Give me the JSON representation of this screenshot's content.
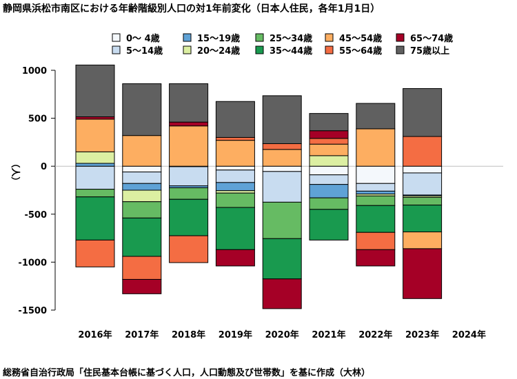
{
  "title": "静岡県浜松市南区における年齢階級別人口の対1年前変化（日本人住民，各年1月1日）",
  "source": "総務省自治行政局「住民基本台帳に基づく人口，人口動態及び世帯数」を基に作成（大林）",
  "chart_data": {
    "type": "bar",
    "stacked": true,
    "ylabel": "（人）",
    "ylim": [
      -1500,
      1000
    ],
    "yticks": [
      1000,
      500,
      0,
      -500,
      -1000,
      -1500
    ],
    "categories": [
      "2016年",
      "2017年",
      "2018年",
      "2019年",
      "2020年",
      "2021年",
      "2022年",
      "2023年",
      "2024年"
    ],
    "legend_position": "top",
    "series": [
      {
        "name": "0～ 4歳",
        "color": "#f4f8fc",
        "values": [
          0,
          -60,
          -5,
          -40,
          -55,
          -90,
          -180,
          -70,
          null
        ]
      },
      {
        "name": "5～14歳",
        "color": "#c8dcf0",
        "values": [
          -240,
          -120,
          -200,
          -130,
          -320,
          -100,
          -80,
          -230,
          null
        ]
      },
      {
        "name": "15～19歳",
        "color": "#5fa2d6",
        "values": [
          30,
          -70,
          -20,
          -85,
          0,
          -140,
          -30,
          -10,
          null
        ]
      },
      {
        "name": "20～24歳",
        "color": "#dcefa2",
        "values": [
          120,
          -120,
          0,
          -25,
          0,
          110,
          -20,
          -15,
          null
        ]
      },
      {
        "name": "25～34歳",
        "color": "#66bb63",
        "values": [
          -80,
          -170,
          -120,
          -150,
          -380,
          -120,
          -100,
          -80,
          null
        ]
      },
      {
        "name": "35～44歳",
        "color": "#199a4f",
        "values": [
          -450,
          -400,
          -380,
          -440,
          -420,
          -320,
          -280,
          -280,
          null
        ]
      },
      {
        "name": "45～54歳",
        "color": "#fdae61",
        "values": [
          340,
          320,
          420,
          270,
          175,
          120,
          390,
          -175,
          null
        ]
      },
      {
        "name": "55～64歳",
        "color": "#f46d43",
        "values": [
          -280,
          -240,
          -280,
          30,
          60,
          60,
          -180,
          310,
          null
        ]
      },
      {
        "name": "65～74歳",
        "color": "#a50026",
        "values": [
          25,
          -150,
          40,
          -170,
          -310,
          80,
          -170,
          -520,
          null
        ]
      },
      {
        "name": "75歳以上",
        "color": "#606060",
        "values": [
          540,
          540,
          400,
          375,
          500,
          180,
          265,
          500,
          null
        ]
      }
    ]
  }
}
